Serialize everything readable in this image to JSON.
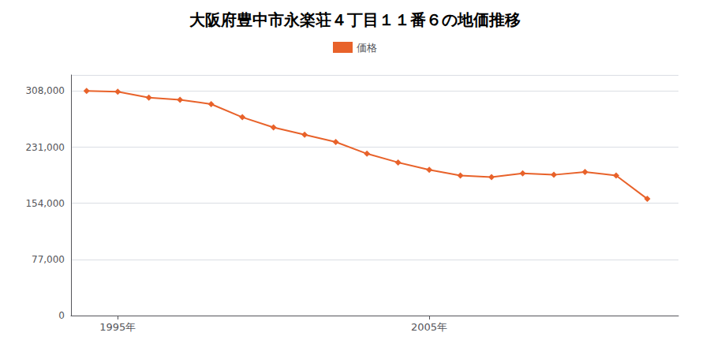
{
  "chart_data": {
    "type": "line",
    "title": "大阪府豊中市永楽荘４丁目１１番６の地価推移",
    "x": [
      1994,
      1995,
      1996,
      1997,
      1998,
      1999,
      2000,
      2001,
      2002,
      2003,
      2004,
      2005,
      2006,
      2007,
      2008,
      2009,
      2010,
      2011,
      2012
    ],
    "series": [
      {
        "name": "価格",
        "color": "#e8622a",
        "values": [
          308000,
          307000,
          299000,
          296000,
          290000,
          272000,
          258000,
          248000,
          238000,
          222000,
          210000,
          200000,
          192000,
          190000,
          195000,
          193000,
          197000,
          192000,
          160000
        ]
      }
    ],
    "marker": "diamond",
    "xlim": [
      1993.5,
      2013
    ],
    "xticks": [
      {
        "value": 1995,
        "label": "1995年"
      },
      {
        "value": 2005,
        "label": "2005年"
      }
    ],
    "ylim": [
      0,
      330000
    ],
    "yticks": [
      0,
      {
        "value": 77000,
        "label": "77,000"
      },
      {
        "value": 154000,
        "label": "154,000"
      },
      {
        "value": 231000,
        "label": "231,000"
      },
      {
        "value": 308000,
        "label": "308,000"
      }
    ],
    "grid": true,
    "legend": "top"
  }
}
